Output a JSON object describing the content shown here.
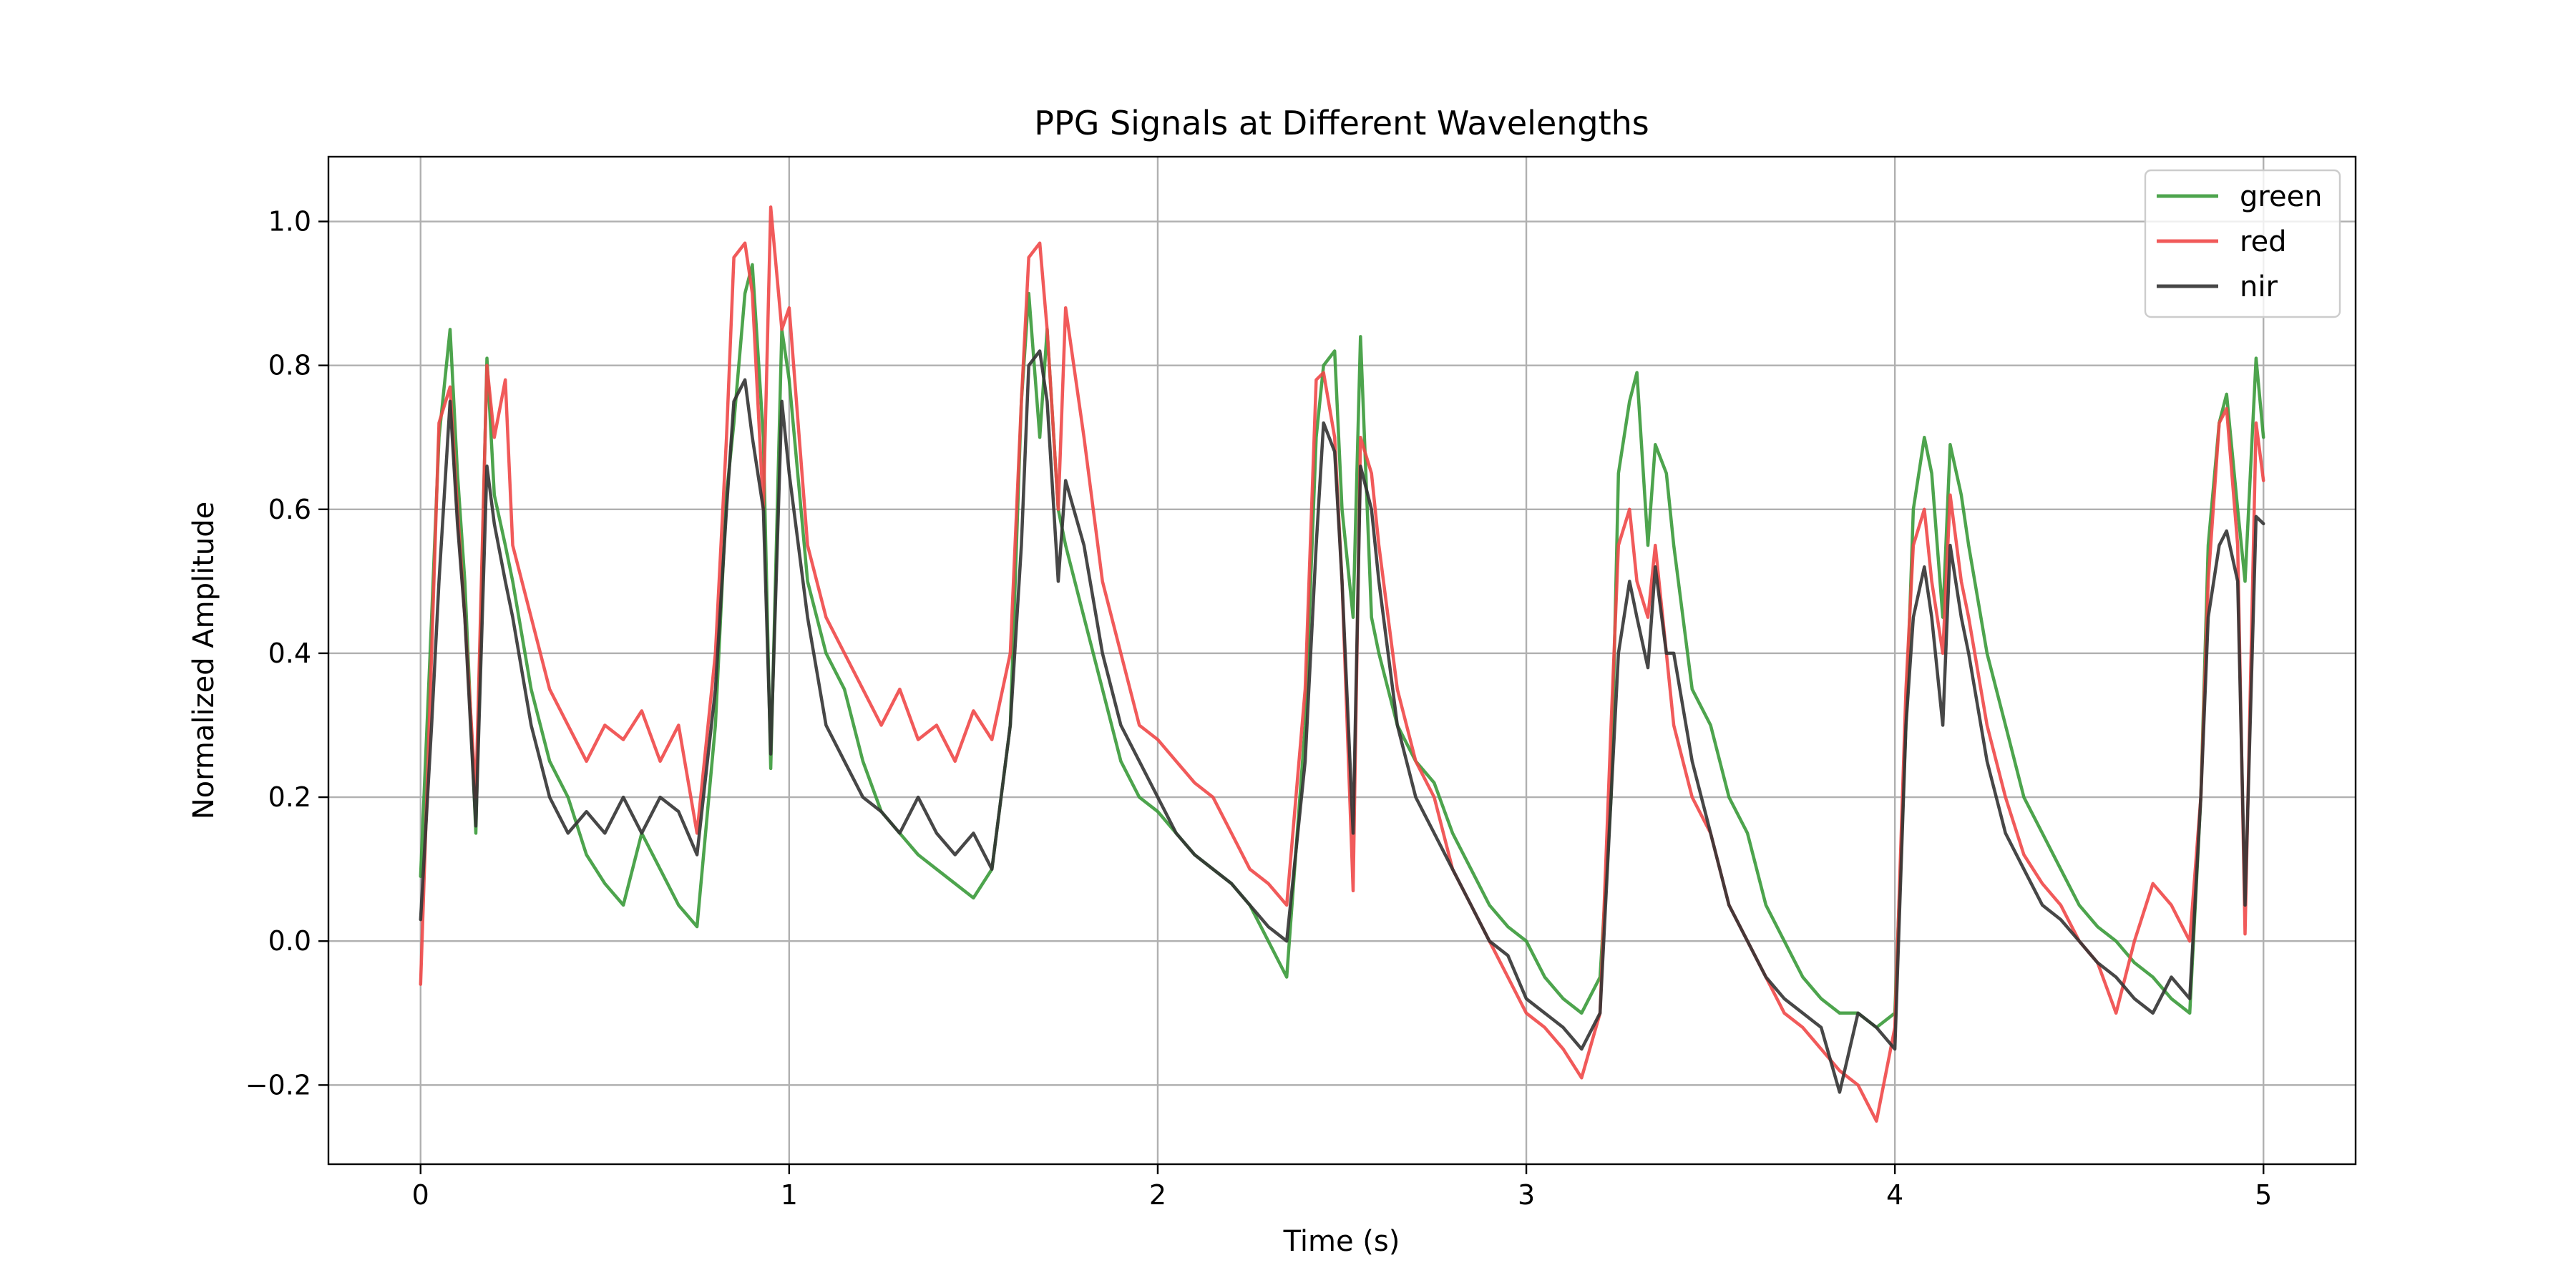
{
  "chart_data": {
    "type": "line",
    "title": "PPG Signals at Different Wavelengths",
    "xlabel": "Time (s)",
    "ylabel": "Normalized Amplitude",
    "xlim": [
      -0.25,
      5.25
    ],
    "ylim": [
      -0.31,
      1.09
    ],
    "xticks": [
      0,
      1,
      2,
      3,
      4,
      5
    ],
    "xtick_labels": [
      "0",
      "1",
      "2",
      "3",
      "4",
      "5"
    ],
    "yticks": [
      -0.2,
      0.0,
      0.2,
      0.4,
      0.6,
      0.8,
      1.0
    ],
    "ytick_labels": [
      "−0.2",
      "0.0",
      "0.2",
      "0.4",
      "0.6",
      "0.8",
      "1.0"
    ],
    "grid": true,
    "legend_position": "top-right",
    "series": [
      {
        "name": "green",
        "color": "#3a9a3a",
        "x": [
          0.0,
          0.03,
          0.05,
          0.08,
          0.1,
          0.12,
          0.15,
          0.18,
          0.2,
          0.23,
          0.25,
          0.3,
          0.35,
          0.4,
          0.45,
          0.5,
          0.55,
          0.6,
          0.65,
          0.7,
          0.75,
          0.8,
          0.83,
          0.85,
          0.88,
          0.9,
          0.93,
          0.95,
          0.98,
          1.0,
          1.05,
          1.1,
          1.15,
          1.2,
          1.25,
          1.3,
          1.35,
          1.4,
          1.45,
          1.5,
          1.55,
          1.6,
          1.63,
          1.65,
          1.68,
          1.7,
          1.73,
          1.75,
          1.8,
          1.85,
          1.9,
          1.95,
          2.0,
          2.05,
          2.1,
          2.15,
          2.2,
          2.25,
          2.3,
          2.35,
          2.4,
          2.43,
          2.45,
          2.48,
          2.5,
          2.53,
          2.55,
          2.58,
          2.6,
          2.65,
          2.7,
          2.75,
          2.8,
          2.85,
          2.9,
          2.95,
          3.0,
          3.05,
          3.1,
          3.15,
          3.2,
          3.23,
          3.25,
          3.28,
          3.3,
          3.33,
          3.35,
          3.38,
          3.4,
          3.45,
          3.5,
          3.55,
          3.6,
          3.65,
          3.7,
          3.75,
          3.8,
          3.85,
          3.9,
          3.95,
          4.0,
          4.03,
          4.05,
          4.08,
          4.1,
          4.13,
          4.15,
          4.18,
          4.2,
          4.25,
          4.3,
          4.35,
          4.4,
          4.45,
          4.5,
          4.55,
          4.6,
          4.65,
          4.7,
          4.75,
          4.8,
          4.83,
          4.85,
          4.88,
          4.9,
          4.93,
          4.95,
          4.98,
          5.0
        ],
        "y": [
          0.09,
          0.45,
          0.7,
          0.85,
          0.65,
          0.5,
          0.15,
          0.81,
          0.62,
          0.55,
          0.5,
          0.35,
          0.25,
          0.2,
          0.12,
          0.08,
          0.05,
          0.15,
          0.1,
          0.05,
          0.02,
          0.3,
          0.62,
          0.72,
          0.9,
          0.94,
          0.7,
          0.24,
          0.85,
          0.78,
          0.5,
          0.4,
          0.35,
          0.25,
          0.18,
          0.15,
          0.12,
          0.1,
          0.08,
          0.06,
          0.1,
          0.3,
          0.75,
          0.9,
          0.7,
          0.85,
          0.6,
          0.55,
          0.45,
          0.35,
          0.25,
          0.2,
          0.18,
          0.15,
          0.12,
          0.1,
          0.08,
          0.05,
          0.0,
          -0.05,
          0.3,
          0.7,
          0.8,
          0.82,
          0.6,
          0.45,
          0.84,
          0.45,
          0.4,
          0.3,
          0.25,
          0.22,
          0.15,
          0.1,
          0.05,
          0.02,
          0.0,
          -0.05,
          -0.08,
          -0.1,
          -0.05,
          0.2,
          0.65,
          0.75,
          0.79,
          0.55,
          0.69,
          0.65,
          0.55,
          0.35,
          0.3,
          0.2,
          0.15,
          0.05,
          0.0,
          -0.05,
          -0.08,
          -0.1,
          -0.1,
          -0.12,
          -0.1,
          0.3,
          0.6,
          0.7,
          0.65,
          0.45,
          0.69,
          0.62,
          0.55,
          0.4,
          0.3,
          0.2,
          0.15,
          0.1,
          0.05,
          0.02,
          0.0,
          -0.03,
          -0.05,
          -0.08,
          -0.1,
          0.2,
          0.55,
          0.72,
          0.76,
          0.6,
          0.5,
          0.81,
          0.7
        ]
      },
      {
        "name": "red",
        "color": "#f04848",
        "x": [
          0.0,
          0.03,
          0.05,
          0.08,
          0.1,
          0.12,
          0.15,
          0.18,
          0.2,
          0.23,
          0.25,
          0.3,
          0.35,
          0.4,
          0.45,
          0.5,
          0.55,
          0.6,
          0.65,
          0.7,
          0.75,
          0.8,
          0.83,
          0.85,
          0.88,
          0.9,
          0.93,
          0.95,
          0.98,
          1.0,
          1.05,
          1.1,
          1.15,
          1.2,
          1.25,
          1.3,
          1.35,
          1.4,
          1.45,
          1.5,
          1.55,
          1.6,
          1.63,
          1.65,
          1.68,
          1.7,
          1.73,
          1.75,
          1.8,
          1.85,
          1.9,
          1.95,
          2.0,
          2.05,
          2.1,
          2.15,
          2.2,
          2.25,
          2.3,
          2.35,
          2.4,
          2.43,
          2.45,
          2.48,
          2.5,
          2.53,
          2.55,
          2.58,
          2.6,
          2.65,
          2.7,
          2.75,
          2.8,
          2.85,
          2.9,
          2.95,
          3.0,
          3.05,
          3.1,
          3.15,
          3.2,
          3.23,
          3.25,
          3.28,
          3.3,
          3.33,
          3.35,
          3.38,
          3.4,
          3.45,
          3.5,
          3.55,
          3.6,
          3.65,
          3.7,
          3.75,
          3.8,
          3.85,
          3.9,
          3.95,
          4.0,
          4.03,
          4.05,
          4.08,
          4.1,
          4.13,
          4.15,
          4.18,
          4.2,
          4.25,
          4.3,
          4.35,
          4.4,
          4.45,
          4.5,
          4.55,
          4.6,
          4.65,
          4.7,
          4.75,
          4.8,
          4.83,
          4.85,
          4.88,
          4.9,
          4.93,
          4.95,
          4.98,
          5.0
        ],
        "y": [
          -0.06,
          0.4,
          0.72,
          0.77,
          0.6,
          0.45,
          0.2,
          0.8,
          0.7,
          0.78,
          0.55,
          0.45,
          0.35,
          0.3,
          0.25,
          0.3,
          0.28,
          0.32,
          0.25,
          0.3,
          0.15,
          0.4,
          0.7,
          0.95,
          0.97,
          0.9,
          0.6,
          1.02,
          0.85,
          0.88,
          0.55,
          0.45,
          0.4,
          0.35,
          0.3,
          0.35,
          0.28,
          0.3,
          0.25,
          0.32,
          0.28,
          0.4,
          0.75,
          0.95,
          0.97,
          0.85,
          0.6,
          0.88,
          0.7,
          0.5,
          0.4,
          0.3,
          0.28,
          0.25,
          0.22,
          0.2,
          0.15,
          0.1,
          0.08,
          0.05,
          0.35,
          0.78,
          0.79,
          0.7,
          0.5,
          0.07,
          0.7,
          0.65,
          0.55,
          0.35,
          0.25,
          0.2,
          0.1,
          0.05,
          0.0,
          -0.05,
          -0.1,
          -0.12,
          -0.15,
          -0.19,
          -0.1,
          0.3,
          0.55,
          0.6,
          0.5,
          0.45,
          0.55,
          0.4,
          0.3,
          0.2,
          0.15,
          0.05,
          0.0,
          -0.05,
          -0.1,
          -0.12,
          -0.15,
          -0.18,
          -0.2,
          -0.25,
          -0.12,
          0.35,
          0.55,
          0.6,
          0.5,
          0.4,
          0.62,
          0.5,
          0.45,
          0.3,
          0.2,
          0.12,
          0.08,
          0.05,
          0.0,
          -0.03,
          -0.1,
          0.0,
          0.08,
          0.05,
          0.0,
          0.2,
          0.5,
          0.72,
          0.74,
          0.55,
          0.01,
          0.72,
          0.64
        ]
      },
      {
        "name": "nir",
        "color": "#333333",
        "x": [
          0.0,
          0.03,
          0.05,
          0.08,
          0.1,
          0.12,
          0.15,
          0.18,
          0.2,
          0.23,
          0.25,
          0.3,
          0.35,
          0.4,
          0.45,
          0.5,
          0.55,
          0.6,
          0.65,
          0.7,
          0.75,
          0.8,
          0.83,
          0.85,
          0.88,
          0.9,
          0.93,
          0.95,
          0.98,
          1.0,
          1.05,
          1.1,
          1.15,
          1.2,
          1.25,
          1.3,
          1.35,
          1.4,
          1.45,
          1.5,
          1.55,
          1.6,
          1.63,
          1.65,
          1.68,
          1.7,
          1.73,
          1.75,
          1.8,
          1.85,
          1.9,
          1.95,
          2.0,
          2.05,
          2.1,
          2.15,
          2.2,
          2.25,
          2.3,
          2.35,
          2.4,
          2.43,
          2.45,
          2.48,
          2.5,
          2.53,
          2.55,
          2.58,
          2.6,
          2.65,
          2.7,
          2.75,
          2.8,
          2.85,
          2.9,
          2.95,
          3.0,
          3.05,
          3.1,
          3.15,
          3.2,
          3.23,
          3.25,
          3.28,
          3.3,
          3.33,
          3.35,
          3.38,
          3.4,
          3.45,
          3.5,
          3.55,
          3.6,
          3.65,
          3.7,
          3.75,
          3.8,
          3.85,
          3.9,
          3.95,
          4.0,
          4.03,
          4.05,
          4.08,
          4.1,
          4.13,
          4.15,
          4.18,
          4.2,
          4.25,
          4.3,
          4.35,
          4.4,
          4.45,
          4.5,
          4.55,
          4.6,
          4.65,
          4.7,
          4.75,
          4.8,
          4.83,
          4.85,
          4.88,
          4.9,
          4.93,
          4.95,
          4.98,
          5.0
        ],
        "y": [
          0.03,
          0.3,
          0.5,
          0.75,
          0.58,
          0.45,
          0.16,
          0.66,
          0.58,
          0.5,
          0.45,
          0.3,
          0.2,
          0.15,
          0.18,
          0.15,
          0.2,
          0.15,
          0.2,
          0.18,
          0.12,
          0.35,
          0.6,
          0.75,
          0.78,
          0.7,
          0.6,
          0.26,
          0.75,
          0.65,
          0.45,
          0.3,
          0.25,
          0.2,
          0.18,
          0.15,
          0.2,
          0.15,
          0.12,
          0.15,
          0.1,
          0.3,
          0.55,
          0.8,
          0.82,
          0.75,
          0.5,
          0.64,
          0.55,
          0.4,
          0.3,
          0.25,
          0.2,
          0.15,
          0.12,
          0.1,
          0.08,
          0.05,
          0.02,
          0.0,
          0.25,
          0.55,
          0.72,
          0.68,
          0.5,
          0.15,
          0.66,
          0.6,
          0.5,
          0.3,
          0.2,
          0.15,
          0.1,
          0.05,
          0.0,
          -0.02,
          -0.08,
          -0.1,
          -0.12,
          -0.15,
          -0.1,
          0.2,
          0.4,
          0.5,
          0.45,
          0.38,
          0.52,
          0.4,
          0.4,
          0.25,
          0.15,
          0.05,
          0.0,
          -0.05,
          -0.08,
          -0.1,
          -0.12,
          -0.21,
          -0.1,
          -0.12,
          -0.15,
          0.3,
          0.45,
          0.52,
          0.45,
          0.3,
          0.55,
          0.45,
          0.4,
          0.25,
          0.15,
          0.1,
          0.05,
          0.03,
          0.0,
          -0.03,
          -0.05,
          -0.08,
          -0.1,
          -0.05,
          -0.08,
          0.2,
          0.45,
          0.55,
          0.57,
          0.5,
          0.05,
          0.59,
          0.58
        ]
      }
    ]
  }
}
